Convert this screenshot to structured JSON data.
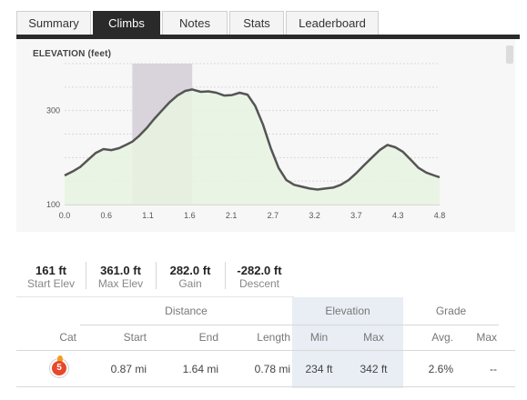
{
  "tabs": [
    {
      "label": "Summary",
      "active": false
    },
    {
      "label": "Climbs",
      "active": true
    },
    {
      "label": "Notes",
      "active": false
    },
    {
      "label": "Stats",
      "active": false
    },
    {
      "label": "Leaderboard",
      "active": false
    }
  ],
  "colors": {
    "tab_active_bg": "#2a2a2a",
    "area_fill": "#e8f3e0",
    "line": "#555555",
    "highlight": "#d9d4dc",
    "badge": "#e8472b"
  },
  "chart_data": {
    "type": "area",
    "title": "ELEVATION (feet)",
    "xlabel": "",
    "ylabel": "",
    "x_ticks": [
      "0.0",
      "0.6",
      "1.1",
      "1.6",
      "2.1",
      "2.7",
      "3.2",
      "3.7",
      "4.3",
      "4.8"
    ],
    "y_ticks": [
      "100",
      "300"
    ],
    "xlim": [
      0.0,
      4.82
    ],
    "ylim": [
      100,
      400
    ],
    "grid": true,
    "highlight_range": [
      0.87,
      1.64
    ],
    "x": [
      0.0,
      0.1,
      0.2,
      0.3,
      0.4,
      0.5,
      0.6,
      0.7,
      0.8,
      0.87,
      0.95,
      1.05,
      1.15,
      1.25,
      1.35,
      1.45,
      1.55,
      1.64,
      1.75,
      1.85,
      1.95,
      2.05,
      2.15,
      2.25,
      2.35,
      2.45,
      2.55,
      2.65,
      2.75,
      2.85,
      2.95,
      3.05,
      3.15,
      3.25,
      3.35,
      3.45,
      3.55,
      3.65,
      3.75,
      3.85,
      3.95,
      4.05,
      4.15,
      4.25,
      4.35,
      4.45,
      4.55,
      4.65,
      4.75,
      4.82
    ],
    "y": [
      162,
      170,
      180,
      195,
      210,
      218,
      216,
      220,
      228,
      234,
      245,
      262,
      282,
      300,
      318,
      332,
      342,
      345,
      340,
      341,
      338,
      332,
      333,
      338,
      334,
      310,
      270,
      220,
      178,
      152,
      142,
      138,
      134,
      132,
      134,
      136,
      142,
      152,
      167,
      184,
      200,
      216,
      227,
      222,
      212,
      195,
      178,
      168,
      162,
      158
    ]
  },
  "stats": [
    {
      "value": "161 ft",
      "label": "Start Elev"
    },
    {
      "value": "361.0 ft",
      "label": "Max Elev"
    },
    {
      "value": "282.0 ft",
      "label": "Gain"
    },
    {
      "value": "-282.0 ft",
      "label": "Descent"
    }
  ],
  "table": {
    "groups": {
      "distance": "Distance",
      "elevation": "Elevation",
      "grade": "Grade"
    },
    "columns": {
      "cat": "Cat",
      "start": "Start",
      "end": "End",
      "length": "Length",
      "min": "Min",
      "max": "Max",
      "avg": "Avg.",
      "grade_max": "Max"
    },
    "rows": [
      {
        "cat": "5",
        "start": "0.87 mi",
        "end": "1.64 mi",
        "length": "0.78 mi",
        "min": "234 ft",
        "max": "342 ft",
        "avg": "2.6%",
        "grade_max": "--"
      }
    ]
  }
}
